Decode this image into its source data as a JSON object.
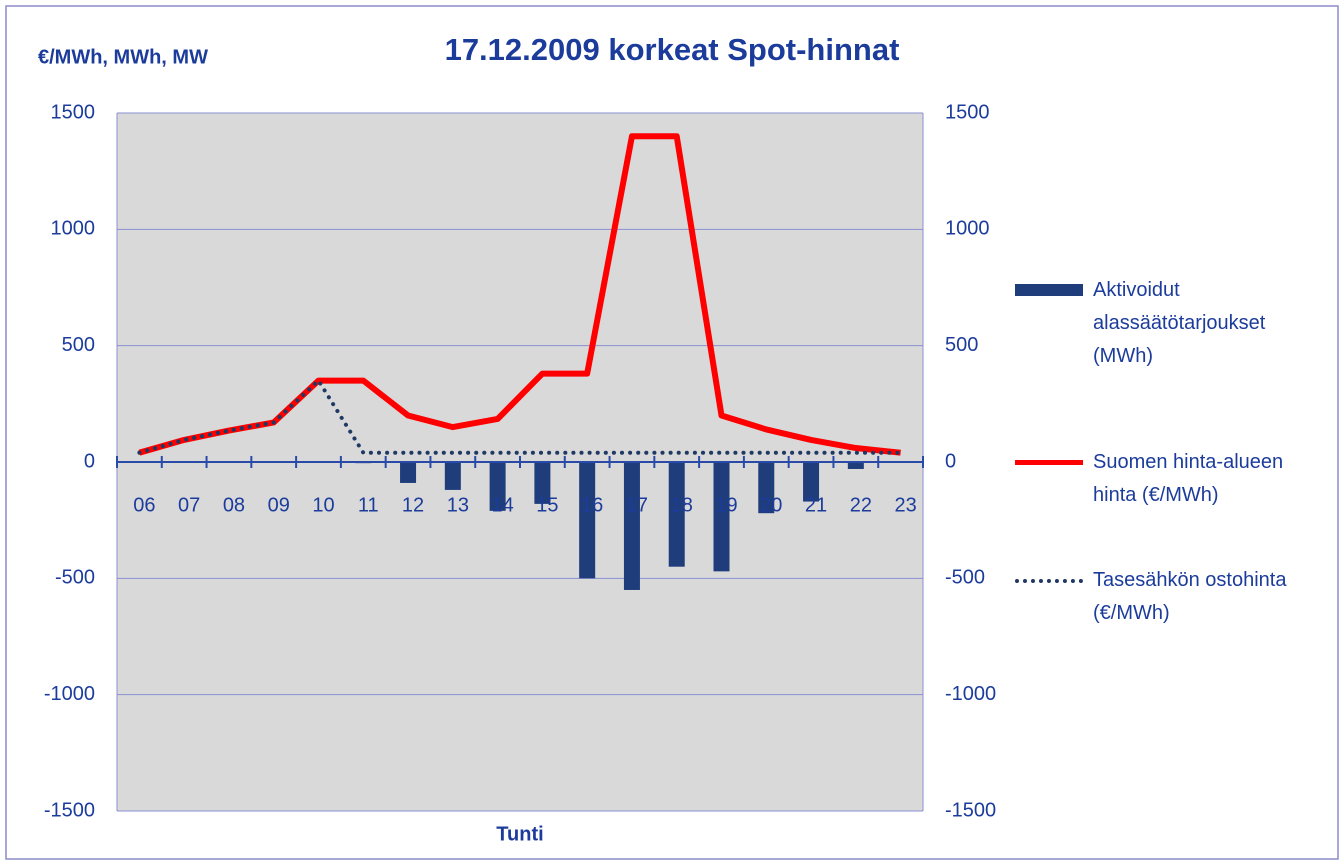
{
  "chart_data": {
    "type": "bar_line",
    "title": "17.12.2009 korkeat Spot-hinnat",
    "ylabel": "€/MWh, MWh, MW",
    "xlabel": "Tunti",
    "categories": [
      "06",
      "07",
      "08",
      "09",
      "10",
      "11",
      "12",
      "13",
      "14",
      "15",
      "16",
      "17",
      "18",
      "19",
      "20",
      "21",
      "22",
      "23"
    ],
    "series": [
      {
        "name": "Aktivoidut alassäätötarjoukset (MWh)",
        "type": "bar",
        "color": "#1f3d7a",
        "values": [
          0,
          0,
          0,
          0,
          0,
          -5,
          -90,
          -120,
          -210,
          -180,
          -500,
          -550,
          -450,
          -470,
          -220,
          -170,
          -30,
          0
        ]
      },
      {
        "name": "Suomen hinta-alueen hinta (€/MWh)",
        "type": "line",
        "color": "#ff0000",
        "values": [
          40,
          95,
          135,
          170,
          350,
          350,
          200,
          150,
          185,
          380,
          380,
          1400,
          1400,
          200,
          140,
          95,
          60,
          40
        ]
      },
      {
        "name": "Tasesähkön ostohinta (€/MWh)",
        "type": "dotted",
        "color": "#1f3864",
        "values": [
          40,
          95,
          135,
          170,
          350,
          40,
          40,
          40,
          40,
          40,
          40,
          40,
          40,
          40,
          40,
          40,
          40,
          40
        ]
      }
    ],
    "ylim": [
      -1500,
      1500
    ],
    "yticks": [
      -1500,
      -1000,
      -500,
      0,
      500,
      1000,
      1500
    ],
    "y2lim": [
      -1500,
      1500
    ],
    "y2ticks": [
      -1500,
      -1000,
      -500,
      0,
      500,
      1000,
      1500
    ],
    "grid": true,
    "legend": "right"
  }
}
